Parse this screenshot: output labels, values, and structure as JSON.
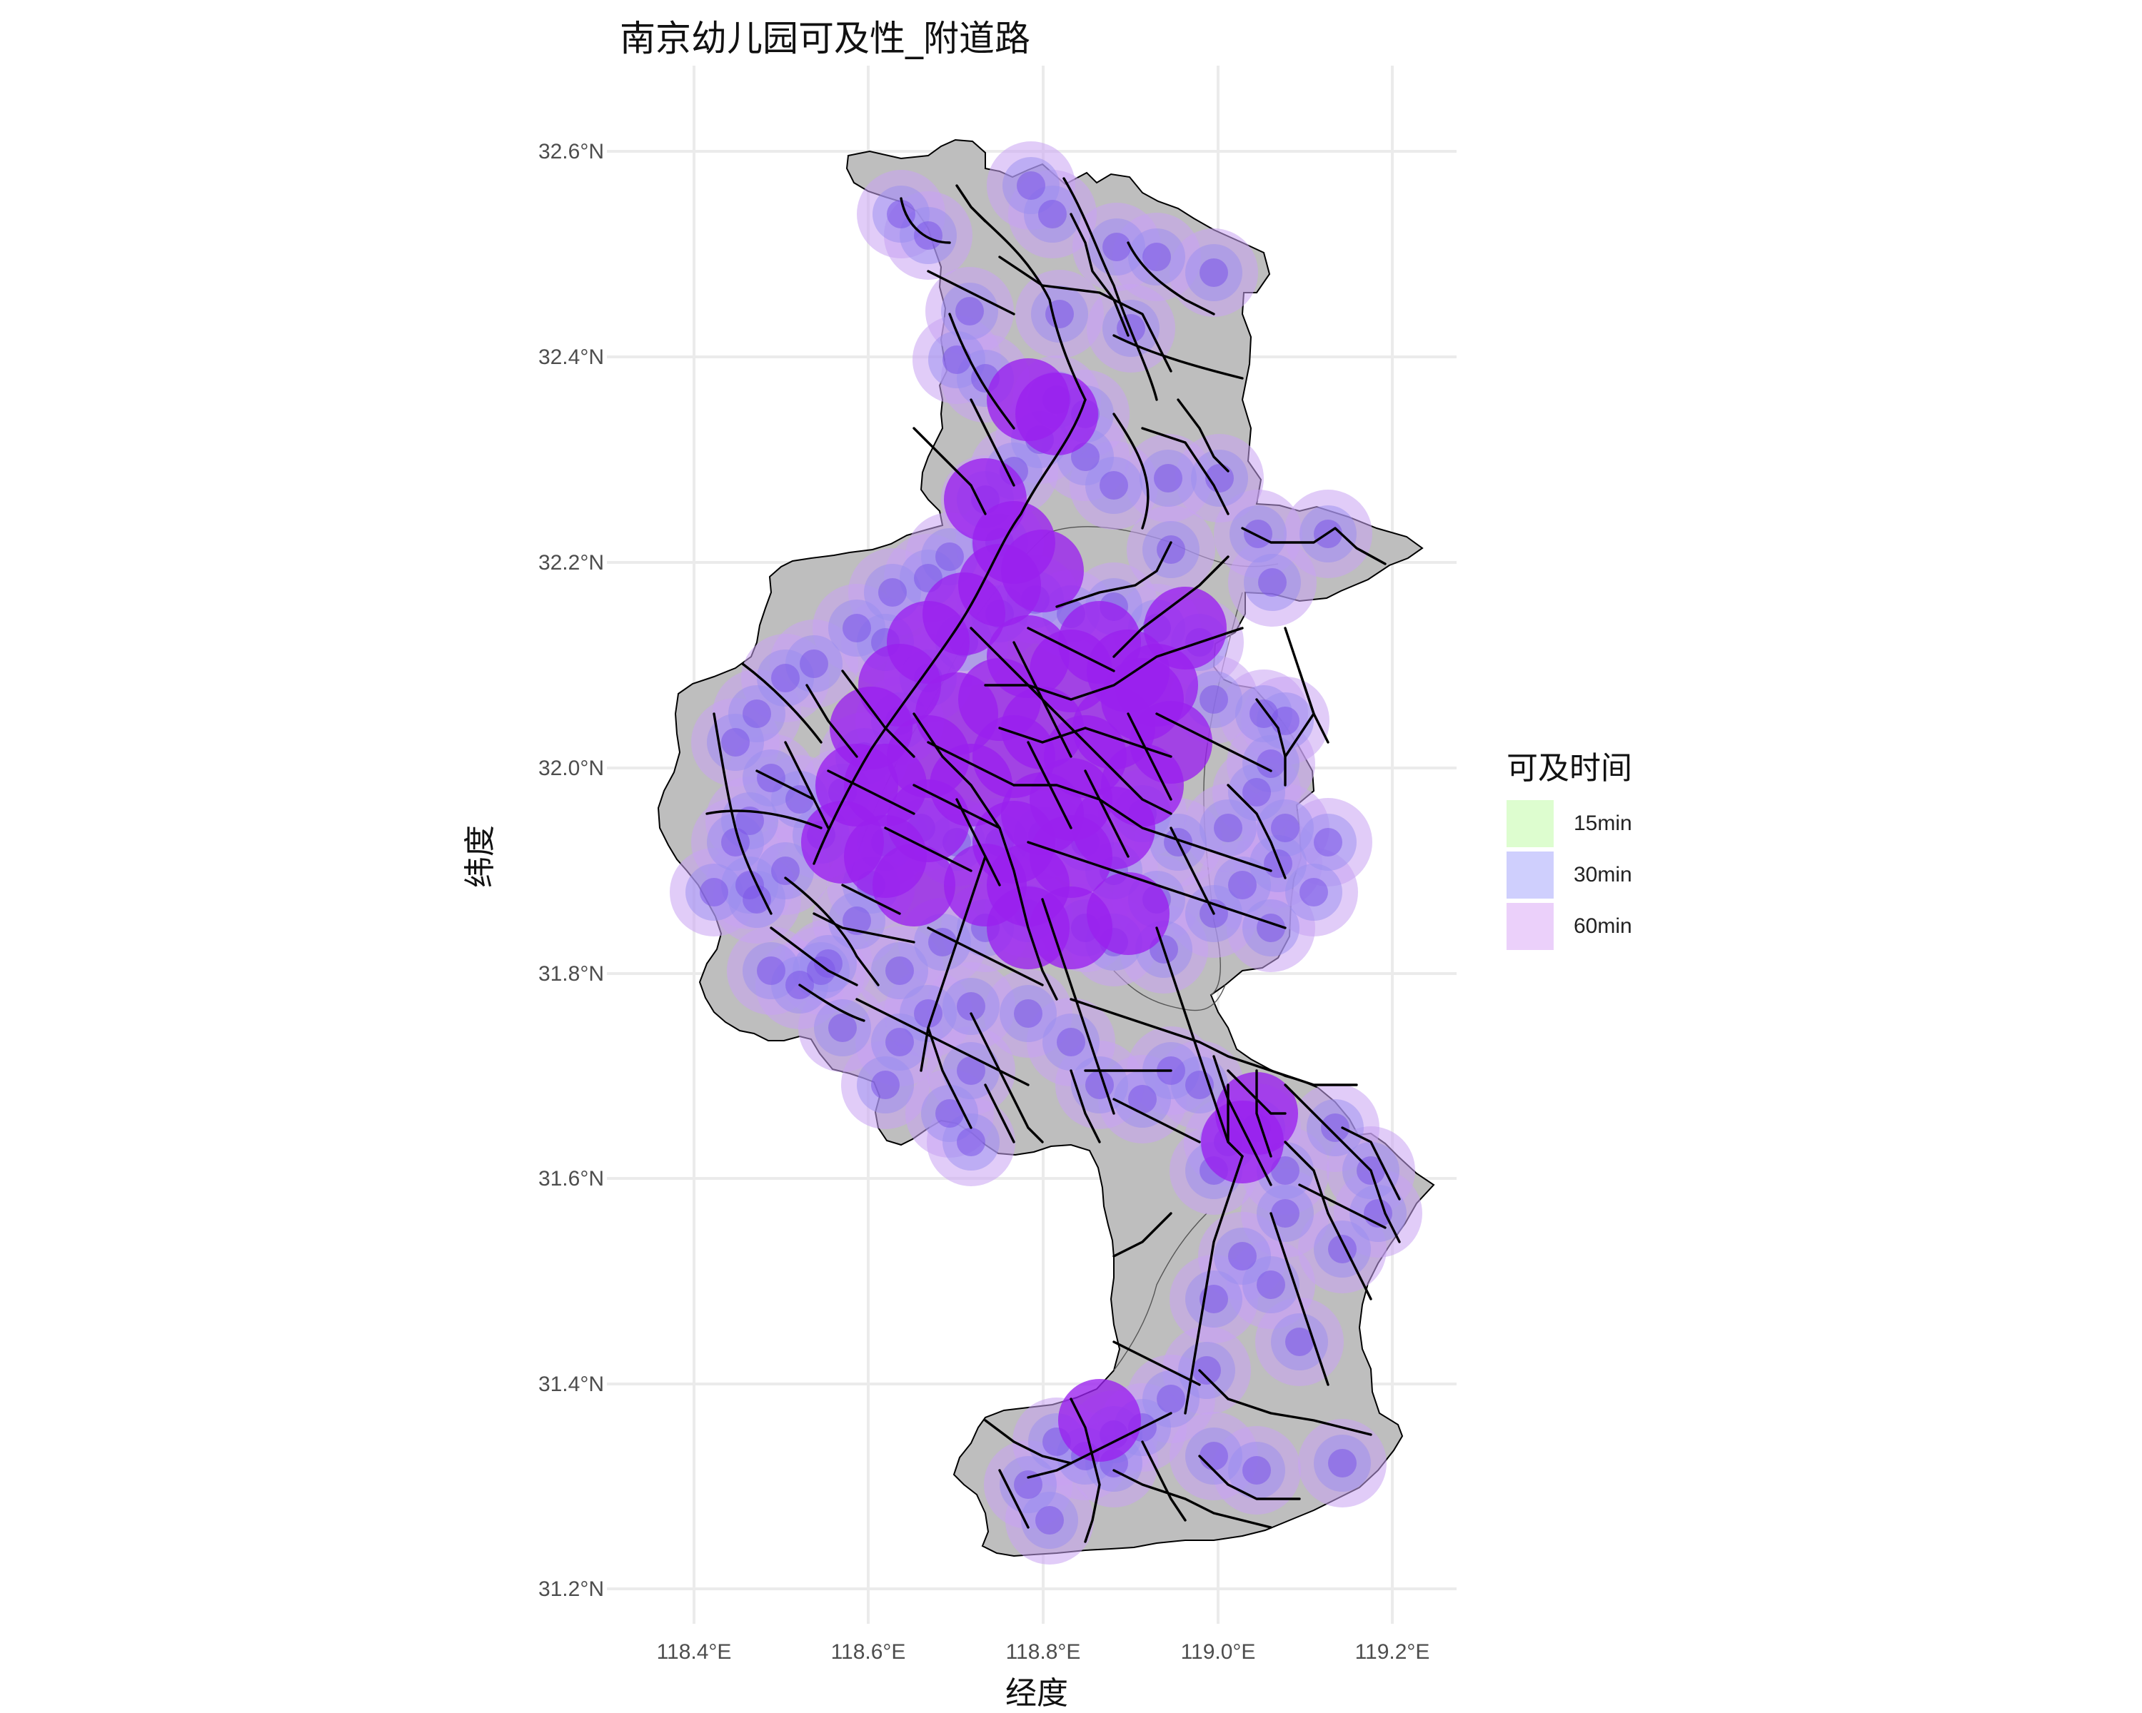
{
  "title": "南京幼儿园可及性_附道路",
  "axes": {
    "xlabel": "经度",
    "ylabel": "纬度",
    "x_ticks": [
      "118.4°E",
      "118.6°E",
      "118.8°E",
      "119.0°E",
      "119.2°E"
    ],
    "y_ticks": [
      "31.2°N",
      "31.4°N",
      "31.6°N",
      "31.8°N",
      "32.0°N",
      "32.2°N",
      "32.4°N",
      "32.6°N"
    ]
  },
  "legend": {
    "title": "可及时间",
    "items": [
      {
        "label": "15min",
        "color": "#ddfdcf"
      },
      {
        "label": "30min",
        "color": "#cfcffd"
      },
      {
        "label": "60min",
        "color": "#ebd0fa"
      }
    ]
  },
  "colors": {
    "boundary_fill": "#bebebe",
    "road": "#000000",
    "coverage_60": "#c9a3f2",
    "coverage_30": "#9a8ef0",
    "coverage_core": "#9a20ee",
    "grid": "#ebebeb"
  }
}
